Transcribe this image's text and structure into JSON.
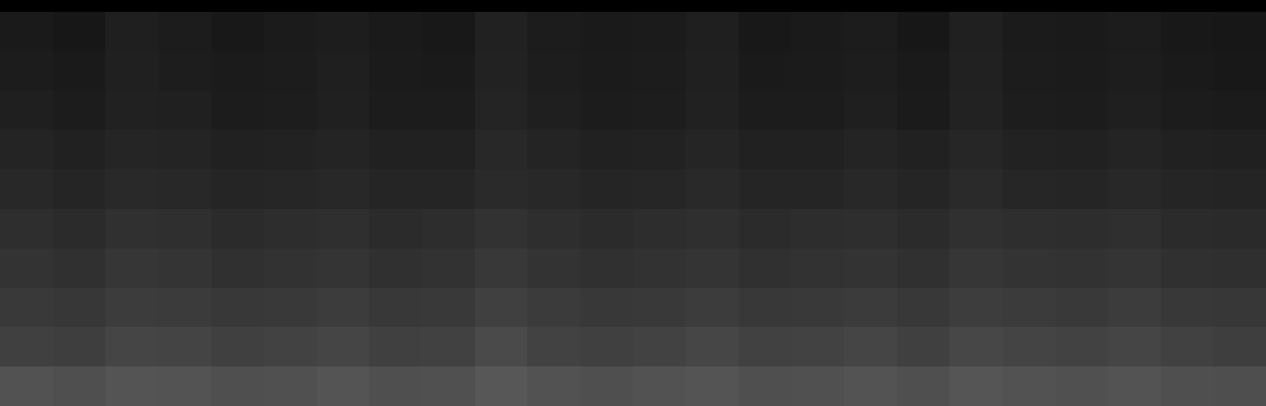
{
  "chart_data": {
    "type": "heatmap",
    "tick_labels": false,
    "zlim": [
      0,
      200
    ],
    "cells": [
      [
        20,
        18,
        24,
        22,
        19,
        21,
        23,
        20,
        19,
        26,
        22,
        20,
        21,
        24,
        19,
        20,
        22,
        18,
        25,
        21,
        20,
        22,
        19,
        18
      ],
      [
        22,
        20,
        25,
        23,
        21,
        22,
        24,
        21,
        20,
        27,
        23,
        21,
        22,
        25,
        20,
        21,
        23,
        20,
        26,
        22,
        21,
        23,
        20,
        19
      ],
      [
        24,
        22,
        26,
        25,
        22,
        23,
        25,
        22,
        22,
        28,
        24,
        22,
        23,
        26,
        22,
        22,
        24,
        21,
        27,
        23,
        22,
        24,
        22,
        21
      ],
      [
        28,
        26,
        29,
        28,
        26,
        27,
        28,
        26,
        26,
        31,
        28,
        26,
        27,
        29,
        26,
        26,
        28,
        26,
        30,
        27,
        26,
        28,
        26,
        25
      ],
      [
        31,
        29,
        32,
        31,
        29,
        30,
        31,
        29,
        29,
        33,
        31,
        29,
        30,
        32,
        29,
        29,
        31,
        29,
        33,
        30,
        29,
        31,
        29,
        28
      ],
      [
        36,
        34,
        38,
        37,
        34,
        35,
        37,
        34,
        35,
        39,
        36,
        34,
        35,
        37,
        34,
        35,
        36,
        34,
        38,
        36,
        35,
        37,
        34,
        33
      ],
      [
        40,
        38,
        42,
        41,
        38,
        39,
        41,
        38,
        39,
        44,
        40,
        38,
        39,
        41,
        38,
        39,
        40,
        38,
        42,
        40,
        39,
        41,
        38,
        37
      ],
      [
        45,
        43,
        47,
        46,
        44,
        45,
        47,
        44,
        45,
        50,
        46,
        44,
        45,
        47,
        44,
        45,
        46,
        44,
        48,
        46,
        45,
        47,
        44,
        43
      ],
      [
        50,
        49,
        54,
        53,
        50,
        52,
        54,
        50,
        51,
        58,
        52,
        50,
        52,
        55,
        51,
        52,
        54,
        50,
        56,
        53,
        52,
        54,
        51,
        49
      ],
      [
        64,
        62,
        66,
        65,
        62,
        63,
        66,
        62,
        63,
        68,
        64,
        62,
        64,
        66,
        62,
        63,
        65,
        62,
        67,
        64,
        63,
        65,
        62,
        61
      ]
    ]
  }
}
